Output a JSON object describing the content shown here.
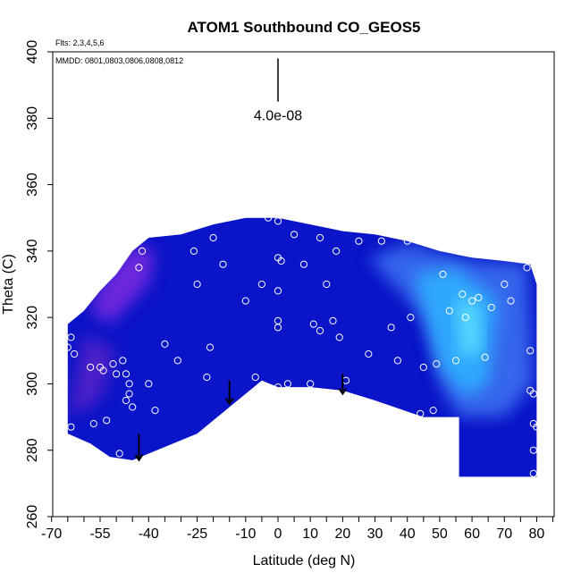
{
  "chart_data": {
    "type": "heatmap",
    "title": "ATOM1 Southbound CO_GEOS5",
    "subtitle_flights": "Flts: 2,3,4,5,6",
    "subtitle_dates": "MMDD: 0801,0803,0806,0808,0812",
    "xlabel": "Latitude (deg N)",
    "ylabel": "Theta (C)",
    "xlim": [
      -70,
      85
    ],
    "ylim": [
      260,
      400
    ],
    "x_ticks": [
      -70,
      -55,
      -40,
      -25,
      -10,
      0,
      10,
      20,
      30,
      40,
      50,
      60,
      70,
      80
    ],
    "x_minor_ticks": [
      -65,
      -60,
      -50,
      -45,
      -35,
      -30,
      -20,
      -15,
      -5,
      5,
      15,
      25,
      35,
      45,
      55,
      65,
      75,
      85
    ],
    "y_ticks": [
      260,
      280,
      300,
      320,
      340,
      360,
      380,
      400
    ],
    "scale_bar": {
      "label": "4.0e-08",
      "x": 0,
      "y_top": 398,
      "y_bottom": 385
    },
    "grid": false,
    "legend": "none",
    "colors": {
      "background_fill": "#0a14c8",
      "purple_region": "#7a2ae0",
      "cyan_region": "#2fb0ff",
      "light_blue_region": "#3a70f0",
      "points": "#ffffff",
      "arrows": "#000000"
    },
    "field_outline": [
      [
        -65,
        287
      ],
      [
        -65,
        318
      ],
      [
        -60,
        322
      ],
      [
        -55,
        328
      ],
      [
        -50,
        333
      ],
      [
        -45,
        340
      ],
      [
        -40,
        344
      ],
      [
        -30,
        345
      ],
      [
        -20,
        348
      ],
      [
        -10,
        350
      ],
      [
        0,
        350
      ],
      [
        10,
        348
      ],
      [
        20,
        346
      ],
      [
        30,
        345
      ],
      [
        40,
        343
      ],
      [
        50,
        340
      ],
      [
        60,
        338
      ],
      [
        70,
        337
      ],
      [
        78,
        336
      ],
      [
        80,
        330
      ],
      [
        80,
        272
      ],
      [
        56,
        272
      ],
      [
        56,
        290
      ],
      [
        45,
        290
      ],
      [
        30,
        295
      ],
      [
        20,
        298
      ],
      [
        10,
        299
      ],
      [
        0,
        299
      ],
      [
        -5,
        301
      ],
      [
        -25,
        285
      ],
      [
        -45,
        277
      ],
      [
        -52,
        278
      ],
      [
        -58,
        282
      ],
      [
        -65,
        285
      ]
    ],
    "regions": [
      {
        "name": "purple",
        "points": [
          [
            -55,
            330
          ],
          [
            -45,
            342
          ],
          [
            -38,
            340
          ],
          [
            -40,
            330
          ],
          [
            -52,
            318
          ],
          [
            -58,
            322
          ]
        ]
      },
      {
        "name": "violet",
        "points": [
          [
            -65,
            290
          ],
          [
            -60,
            315
          ],
          [
            -50,
            310
          ],
          [
            -55,
            295
          ]
        ]
      },
      {
        "name": "light-blue",
        "points": [
          [
            28,
            338
          ],
          [
            40,
            342
          ],
          [
            60,
            337
          ],
          [
            77,
            336
          ],
          [
            79,
            300
          ],
          [
            70,
            290
          ],
          [
            56,
            290
          ],
          [
            50,
            300
          ],
          [
            45,
            320
          ]
        ]
      },
      {
        "name": "cyan",
        "points": [
          [
            42,
            333
          ],
          [
            55,
            335
          ],
          [
            68,
            325
          ],
          [
            65,
            300
          ],
          [
            58,
            296
          ],
          [
            50,
            305
          ]
        ]
      },
      {
        "name": "bright-cyan",
        "points": [
          [
            55,
            326
          ],
          [
            62,
            324
          ],
          [
            63,
            310
          ],
          [
            57,
            308
          ]
        ]
      }
    ],
    "points": [
      [
        -65,
        311
      ],
      [
        -64,
        314
      ],
      [
        -63,
        309
      ],
      [
        -64,
        287
      ],
      [
        -58,
        305
      ],
      [
        -57,
        288
      ],
      [
        -55,
        305
      ],
      [
        -54,
        304
      ],
      [
        -53,
        289
      ],
      [
        -51,
        306
      ],
      [
        -50,
        303
      ],
      [
        -49,
        279
      ],
      [
        -48,
        307
      ],
      [
        -47,
        303
      ],
      [
        -47,
        295
      ],
      [
        -46,
        300
      ],
      [
        -46,
        297
      ],
      [
        -45,
        293
      ],
      [
        -43,
        335
      ],
      [
        -42,
        340
      ],
      [
        -40,
        300
      ],
      [
        -38,
        292
      ],
      [
        -35,
        312
      ],
      [
        -31,
        307
      ],
      [
        -26,
        340
      ],
      [
        -25,
        330
      ],
      [
        -22,
        302
      ],
      [
        -21,
        311
      ],
      [
        -20,
        344
      ],
      [
        -17,
        336
      ],
      [
        -10,
        325
      ],
      [
        -7,
        302
      ],
      [
        -5,
        330
      ],
      [
        -3,
        350
      ],
      [
        0,
        349
      ],
      [
        0,
        338
      ],
      [
        0,
        328
      ],
      [
        0,
        319
      ],
      [
        0,
        317
      ],
      [
        0,
        299
      ],
      [
        1,
        337
      ],
      [
        3,
        300
      ],
      [
        5,
        345
      ],
      [
        8,
        336
      ],
      [
        10,
        300
      ],
      [
        11,
        318
      ],
      [
        13,
        316
      ],
      [
        13,
        344
      ],
      [
        15,
        330
      ],
      [
        17,
        319
      ],
      [
        18,
        340
      ],
      [
        19,
        314
      ],
      [
        21,
        301
      ],
      [
        25,
        343
      ],
      [
        28,
        309
      ],
      [
        32,
        343
      ],
      [
        35,
        317
      ],
      [
        37,
        307
      ],
      [
        38,
        291
      ],
      [
        40,
        343
      ],
      [
        41,
        320
      ],
      [
        44,
        291
      ],
      [
        45,
        305
      ],
      [
        48,
        292
      ],
      [
        49,
        306
      ],
      [
        51,
        333
      ],
      [
        53,
        322
      ],
      [
        55,
        307
      ],
      [
        57,
        327
      ],
      [
        58,
        320
      ],
      [
        60,
        325
      ],
      [
        62,
        326
      ],
      [
        64,
        308
      ],
      [
        66,
        323
      ],
      [
        70,
        330
      ],
      [
        72,
        325
      ],
      [
        77,
        335
      ],
      [
        78,
        310
      ],
      [
        78,
        298
      ],
      [
        79,
        297
      ],
      [
        79,
        288
      ],
      [
        80,
        287
      ],
      [
        79,
        280
      ],
      [
        79,
        273
      ]
    ],
    "arrows": [
      {
        "x": -43,
        "y_top": 285,
        "y_bottom": 277
      },
      {
        "x": -15,
        "y_top": 301,
        "y_bottom": 294
      },
      {
        "x": 20,
        "y_top": 303,
        "y_bottom": 297
      }
    ]
  }
}
